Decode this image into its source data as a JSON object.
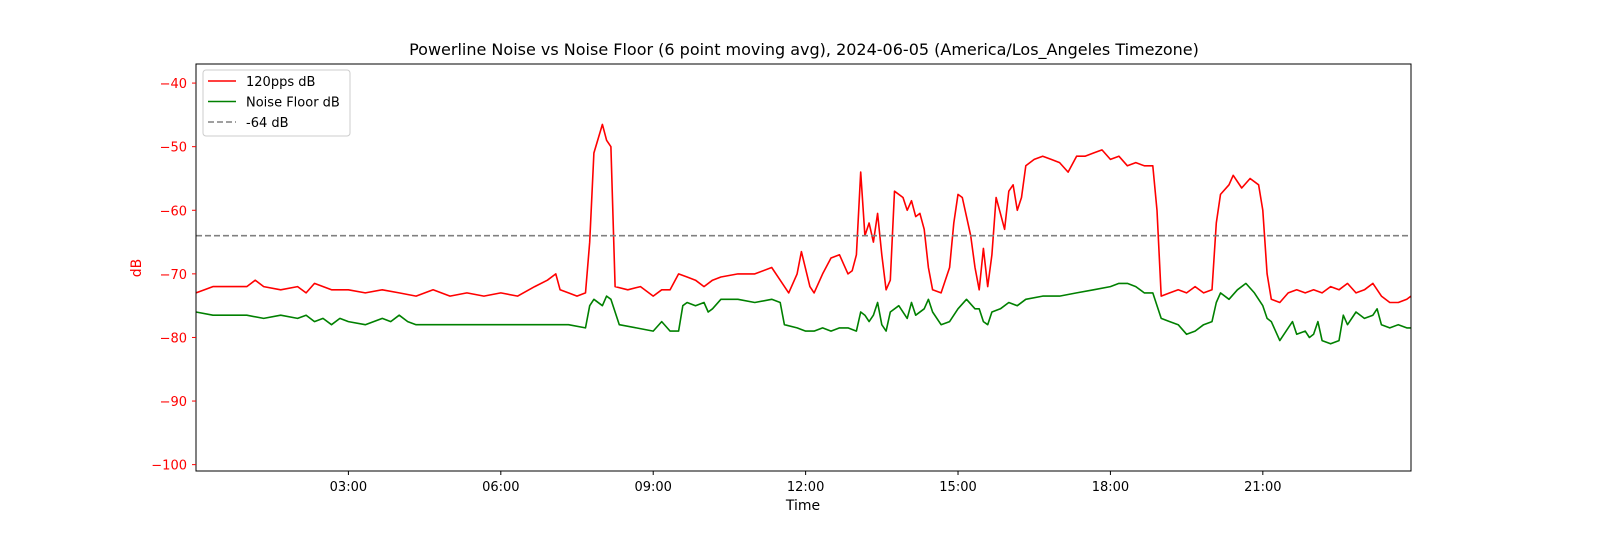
{
  "chart_data": {
    "type": "line",
    "title": "Powerline Noise vs Noise Floor (6 point moving avg), 2024-06-05 (America/Los_Angeles Timezone)",
    "xlabel": "Time",
    "ylabel": "dB",
    "xlim": [
      "00:00",
      "23:55"
    ],
    "ylim": [
      -101,
      -37
    ],
    "x_ticks": [
      "03:00",
      "06:00",
      "09:00",
      "12:00",
      "15:00",
      "18:00",
      "21:00"
    ],
    "y_ticks": [
      -100,
      -90,
      -80,
      -70,
      -60,
      -50,
      -40
    ],
    "grid": false,
    "legend_position": "top-left",
    "colors": {
      "ylabel_and_ticks": "#ff0000"
    },
    "series": [
      {
        "name": "120pps dB",
        "color": "#ff0000",
        "style": "solid",
        "points": [
          [
            "00:00",
            -73
          ],
          [
            "00:10",
            -72.5
          ],
          [
            "00:20",
            -72
          ],
          [
            "00:40",
            -72
          ],
          [
            "01:00",
            -72
          ],
          [
            "01:10",
            -71
          ],
          [
            "01:20",
            -72
          ],
          [
            "01:40",
            -72.5
          ],
          [
            "02:00",
            -72
          ],
          [
            "02:10",
            -73
          ],
          [
            "02:20",
            -71.5
          ],
          [
            "02:40",
            -72.5
          ],
          [
            "03:00",
            -72.5
          ],
          [
            "03:20",
            -73
          ],
          [
            "03:40",
            -72.5
          ],
          [
            "04:00",
            -73
          ],
          [
            "04:20",
            -73.5
          ],
          [
            "04:40",
            -72.5
          ],
          [
            "05:00",
            -73.5
          ],
          [
            "05:20",
            -73
          ],
          [
            "05:40",
            -73.5
          ],
          [
            "06:00",
            -73
          ],
          [
            "06:20",
            -73.5
          ],
          [
            "06:40",
            -72
          ],
          [
            "06:55",
            -71
          ],
          [
            "07:05",
            -70
          ],
          [
            "07:10",
            -72.5
          ],
          [
            "07:20",
            -73
          ],
          [
            "07:30",
            -73.5
          ],
          [
            "07:40",
            -73
          ],
          [
            "07:45",
            -65
          ],
          [
            "07:50",
            -51
          ],
          [
            "08:00",
            -46.5
          ],
          [
            "08:05",
            -49
          ],
          [
            "08:10",
            -50
          ],
          [
            "08:15",
            -72
          ],
          [
            "08:30",
            -72.5
          ],
          [
            "08:45",
            -72
          ],
          [
            "09:00",
            -73.5
          ],
          [
            "09:10",
            -72.5
          ],
          [
            "09:20",
            -72.5
          ],
          [
            "09:30",
            -70
          ],
          [
            "09:40",
            -70.5
          ],
          [
            "09:50",
            -71
          ],
          [
            "10:00",
            -72
          ],
          [
            "10:10",
            -71
          ],
          [
            "10:20",
            -70.5
          ],
          [
            "10:40",
            -70
          ],
          [
            "11:00",
            -70
          ],
          [
            "11:20",
            -69
          ],
          [
            "11:30",
            -71
          ],
          [
            "11:40",
            -73
          ],
          [
            "11:50",
            -70
          ],
          [
            "11:55",
            -66.5
          ],
          [
            "12:05",
            -72
          ],
          [
            "12:10",
            -73
          ],
          [
            "12:20",
            -70
          ],
          [
            "12:30",
            -67.5
          ],
          [
            "12:40",
            -67
          ],
          [
            "12:45",
            -68.5
          ],
          [
            "12:50",
            -70
          ],
          [
            "12:55",
            -69.5
          ],
          [
            "13:00",
            -67
          ],
          [
            "13:05",
            -54
          ],
          [
            "13:10",
            -64
          ],
          [
            "13:15",
            -62
          ],
          [
            "13:20",
            -65
          ],
          [
            "13:25",
            -60.5
          ],
          [
            "13:30",
            -67
          ],
          [
            "13:35",
            -72.5
          ],
          [
            "13:40",
            -71
          ],
          [
            "13:45",
            -57
          ],
          [
            "13:55",
            -58
          ],
          [
            "14:00",
            -60
          ],
          [
            "14:05",
            -58.5
          ],
          [
            "14:10",
            -61
          ],
          [
            "14:15",
            -60.5
          ],
          [
            "14:20",
            -63
          ],
          [
            "14:25",
            -69
          ],
          [
            "14:30",
            -72.5
          ],
          [
            "14:40",
            -73
          ],
          [
            "14:50",
            -69
          ],
          [
            "14:55",
            -62
          ],
          [
            "15:00",
            -57.5
          ],
          [
            "15:05",
            -58
          ],
          [
            "15:10",
            -61
          ],
          [
            "15:15",
            -64
          ],
          [
            "15:20",
            -69
          ],
          [
            "15:25",
            -72.5
          ],
          [
            "15:30",
            -66
          ],
          [
            "15:35",
            -72
          ],
          [
            "15:40",
            -67
          ],
          [
            "15:45",
            -58
          ],
          [
            "15:50",
            -60.5
          ],
          [
            "15:55",
            -63
          ],
          [
            "16:00",
            -57
          ],
          [
            "16:05",
            -56
          ],
          [
            "16:10",
            -60
          ],
          [
            "16:15",
            -58
          ],
          [
            "16:20",
            -53
          ],
          [
            "16:30",
            -52
          ],
          [
            "16:40",
            -51.5
          ],
          [
            "16:50",
            -52
          ],
          [
            "17:00",
            -52.5
          ],
          [
            "17:10",
            -54
          ],
          [
            "17:20",
            -51.5
          ],
          [
            "17:30",
            -51.5
          ],
          [
            "17:40",
            -51
          ],
          [
            "17:50",
            -50.5
          ],
          [
            "18:00",
            -52
          ],
          [
            "18:10",
            -51.5
          ],
          [
            "18:20",
            -53
          ],
          [
            "18:30",
            -52.5
          ],
          [
            "18:40",
            -53
          ],
          [
            "18:50",
            -53
          ],
          [
            "18:55",
            -60
          ],
          [
            "19:00",
            -73.5
          ],
          [
            "19:10",
            -73
          ],
          [
            "19:20",
            -72.5
          ],
          [
            "19:30",
            -73
          ],
          [
            "19:40",
            -72
          ],
          [
            "19:50",
            -73
          ],
          [
            "20:00",
            -72.5
          ],
          [
            "20:05",
            -62
          ],
          [
            "20:10",
            -57.5
          ],
          [
            "20:20",
            -56
          ],
          [
            "20:25",
            -54.5
          ],
          [
            "20:35",
            -56.5
          ],
          [
            "20:45",
            -55
          ],
          [
            "20:55",
            -56
          ],
          [
            "21:00",
            -60
          ],
          [
            "21:05",
            -70
          ],
          [
            "21:10",
            -74
          ],
          [
            "21:20",
            -74.5
          ],
          [
            "21:30",
            -73
          ],
          [
            "21:40",
            -72.5
          ],
          [
            "21:50",
            -73
          ],
          [
            "22:00",
            -72.5
          ],
          [
            "22:10",
            -73
          ],
          [
            "22:20",
            -72
          ],
          [
            "22:30",
            -72.5
          ],
          [
            "22:40",
            -71.5
          ],
          [
            "22:50",
            -73
          ],
          [
            "23:00",
            -72.5
          ],
          [
            "23:10",
            -71.5
          ],
          [
            "23:20",
            -73.5
          ],
          [
            "23:30",
            -74.5
          ],
          [
            "23:40",
            -74.5
          ],
          [
            "23:50",
            -74
          ],
          [
            "23:55",
            -73.5
          ]
        ]
      },
      {
        "name": "Noise Floor dB",
        "color": "#008000",
        "style": "solid",
        "points": [
          [
            "00:00",
            -76
          ],
          [
            "00:20",
            -76.5
          ],
          [
            "00:40",
            -76.5
          ],
          [
            "01:00",
            -76.5
          ],
          [
            "01:20",
            -77
          ],
          [
            "01:40",
            -76.5
          ],
          [
            "02:00",
            -77
          ],
          [
            "02:10",
            -76.5
          ],
          [
            "02:20",
            -77.5
          ],
          [
            "02:30",
            -77
          ],
          [
            "02:40",
            -78
          ],
          [
            "02:50",
            -77
          ],
          [
            "03:00",
            -77.5
          ],
          [
            "03:20",
            -78
          ],
          [
            "03:40",
            -77
          ],
          [
            "03:50",
            -77.5
          ],
          [
            "04:00",
            -76.5
          ],
          [
            "04:10",
            -77.5
          ],
          [
            "04:20",
            -78
          ],
          [
            "04:40",
            -78
          ],
          [
            "05:00",
            -78
          ],
          [
            "05:20",
            -78
          ],
          [
            "05:40",
            -78
          ],
          [
            "06:00",
            -78
          ],
          [
            "06:20",
            -78
          ],
          [
            "06:40",
            -78
          ],
          [
            "07:00",
            -78
          ],
          [
            "07:20",
            -78
          ],
          [
            "07:40",
            -78.5
          ],
          [
            "07:45",
            -75
          ],
          [
            "07:50",
            -74
          ],
          [
            "08:00",
            -75
          ],
          [
            "08:05",
            -73.5
          ],
          [
            "08:10",
            -74
          ],
          [
            "08:20",
            -78
          ],
          [
            "08:40",
            -78.5
          ],
          [
            "09:00",
            -79
          ],
          [
            "09:10",
            -77.5
          ],
          [
            "09:20",
            -79
          ],
          [
            "09:30",
            -79
          ],
          [
            "09:35",
            -75
          ],
          [
            "09:40",
            -74.5
          ],
          [
            "09:50",
            -75
          ],
          [
            "10:00",
            -74.5
          ],
          [
            "10:05",
            -76
          ],
          [
            "10:10",
            -75.5
          ],
          [
            "10:20",
            -74
          ],
          [
            "10:40",
            -74
          ],
          [
            "11:00",
            -74.5
          ],
          [
            "11:20",
            -74
          ],
          [
            "11:30",
            -74.5
          ],
          [
            "11:35",
            -78
          ],
          [
            "11:50",
            -78.5
          ],
          [
            "12:00",
            -79
          ],
          [
            "12:10",
            -79
          ],
          [
            "12:20",
            -78.5
          ],
          [
            "12:30",
            -79
          ],
          [
            "12:40",
            -78.5
          ],
          [
            "12:50",
            -78.5
          ],
          [
            "13:00",
            -79
          ],
          [
            "13:05",
            -76
          ],
          [
            "13:10",
            -76.5
          ],
          [
            "13:15",
            -77.5
          ],
          [
            "13:20",
            -76.5
          ],
          [
            "13:25",
            -74.5
          ],
          [
            "13:30",
            -78
          ],
          [
            "13:35",
            -79
          ],
          [
            "13:40",
            -76
          ],
          [
            "13:50",
            -75
          ],
          [
            "14:00",
            -77
          ],
          [
            "14:05",
            -74.5
          ],
          [
            "14:10",
            -76.5
          ],
          [
            "14:20",
            -75.5
          ],
          [
            "14:25",
            -74
          ],
          [
            "14:30",
            -76
          ],
          [
            "14:40",
            -78
          ],
          [
            "14:50",
            -77.5
          ],
          [
            "15:00",
            -75.5
          ],
          [
            "15:10",
            -74
          ],
          [
            "15:20",
            -75.5
          ],
          [
            "15:25",
            -75.5
          ],
          [
            "15:30",
            -77.5
          ],
          [
            "15:35",
            -78
          ],
          [
            "15:40",
            -76
          ],
          [
            "15:50",
            -75.5
          ],
          [
            "16:00",
            -74.5
          ],
          [
            "16:10",
            -75
          ],
          [
            "16:20",
            -74
          ],
          [
            "16:40",
            -73.5
          ],
          [
            "17:00",
            -73.5
          ],
          [
            "17:20",
            -73
          ],
          [
            "17:40",
            -72.5
          ],
          [
            "18:00",
            -72
          ],
          [
            "18:10",
            -71.5
          ],
          [
            "18:20",
            -71.5
          ],
          [
            "18:30",
            -72
          ],
          [
            "18:40",
            -73
          ],
          [
            "18:50",
            -73
          ],
          [
            "19:00",
            -77
          ],
          [
            "19:10",
            -77.5
          ],
          [
            "19:20",
            -78
          ],
          [
            "19:30",
            -79.5
          ],
          [
            "19:40",
            -79
          ],
          [
            "19:50",
            -78
          ],
          [
            "20:00",
            -77.5
          ],
          [
            "20:05",
            -74.5
          ],
          [
            "20:10",
            -73
          ],
          [
            "20:20",
            -74
          ],
          [
            "20:30",
            -72.5
          ],
          [
            "20:40",
            -71.5
          ],
          [
            "20:50",
            -73
          ],
          [
            "21:00",
            -75
          ],
          [
            "21:05",
            -77
          ],
          [
            "21:10",
            -77.5
          ],
          [
            "21:20",
            -80.5
          ],
          [
            "21:30",
            -78.5
          ],
          [
            "21:35",
            -77.5
          ],
          [
            "21:40",
            -79.5
          ],
          [
            "21:50",
            -79
          ],
          [
            "21:55",
            -80
          ],
          [
            "22:00",
            -79.5
          ],
          [
            "22:05",
            -77.5
          ],
          [
            "22:10",
            -80.5
          ],
          [
            "22:20",
            -81
          ],
          [
            "22:30",
            -80.5
          ],
          [
            "22:35",
            -76.5
          ],
          [
            "22:40",
            -78
          ],
          [
            "22:50",
            -76
          ],
          [
            "23:00",
            -77
          ],
          [
            "23:10",
            -76.5
          ],
          [
            "23:15",
            -75.5
          ],
          [
            "23:20",
            -78
          ],
          [
            "23:30",
            -78.5
          ],
          [
            "23:40",
            -78
          ],
          [
            "23:50",
            -78.5
          ],
          [
            "23:55",
            -78.5
          ]
        ]
      },
      {
        "name": "-64 dB",
        "color": "#808080",
        "style": "dashed",
        "points": [
          [
            "00:00",
            -64
          ],
          [
            "23:55",
            -64
          ]
        ]
      }
    ]
  }
}
